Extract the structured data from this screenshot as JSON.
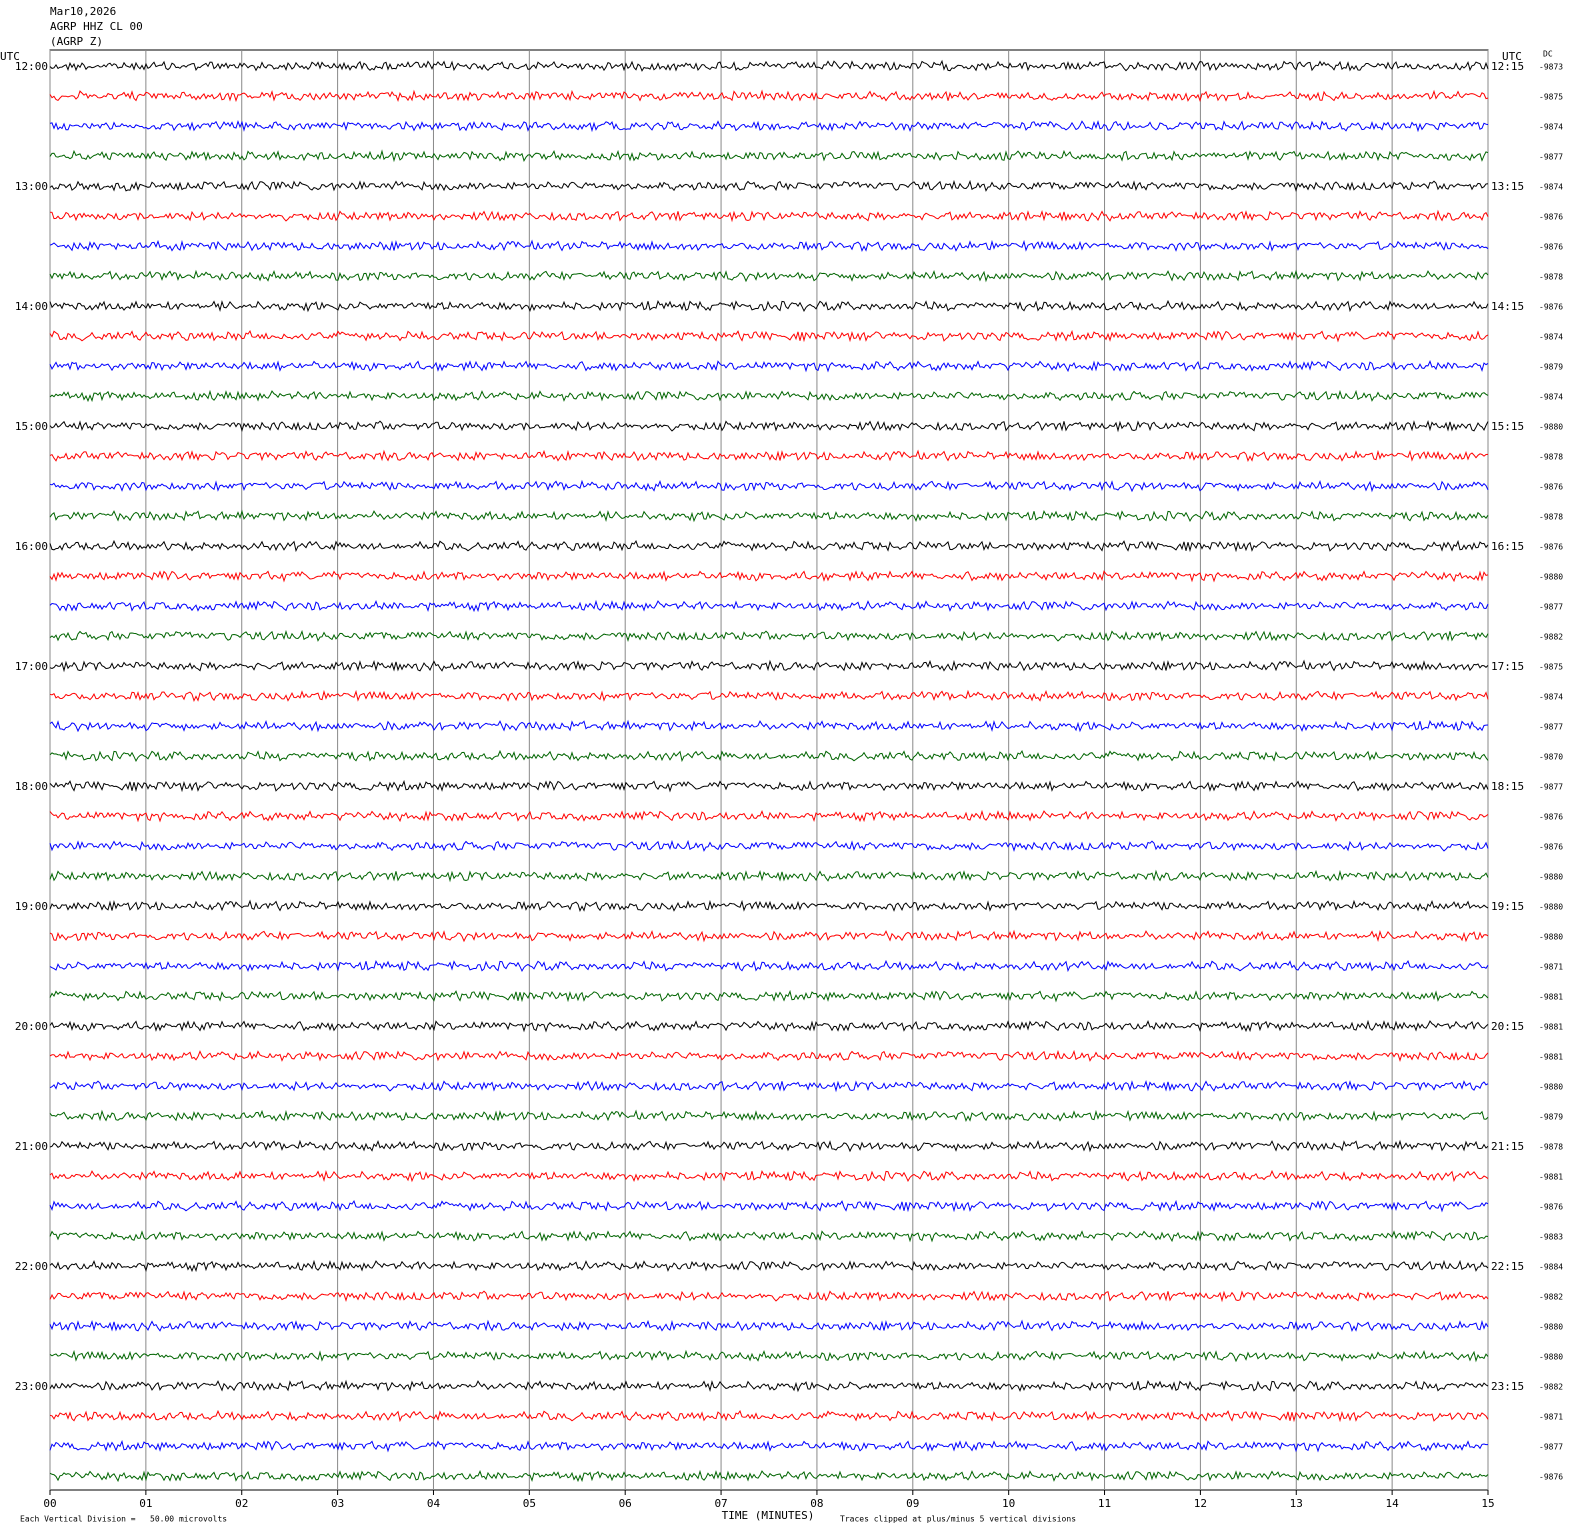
{
  "chart_data": {
    "type": "helicorder",
    "title": "Mar10,2026",
    "subtitle": "AGRP HHZ CL 00",
    "station": "(AGRP Z)",
    "left_axis_title": "UTC",
    "right_axis_title": "UTC",
    "dc_title": "DC",
    "left_labels": [
      "12:00",
      "13:00",
      "14:00",
      "15:00",
      "16:00",
      "17:00",
      "18:00",
      "19:00",
      "20:00",
      "21:00",
      "22:00",
      "23:00"
    ],
    "right_labels": [
      "12:15",
      "13:15",
      "14:15",
      "15:15",
      "16:15",
      "17:15",
      "18:15",
      "19:15",
      "20:15",
      "21:15",
      "22:15",
      "23:15"
    ],
    "trace_colors": [
      "#000000",
      "#ff0000",
      "#0000ff",
      "#006400"
    ],
    "dc_values": [
      -9873,
      -9875,
      -9874,
      -9877,
      -9874,
      -9876,
      -9876,
      -9878,
      -9876,
      -9874,
      -9879,
      -9874,
      -9880,
      -9878,
      -9876,
      -9878,
      -9876,
      -9880,
      -9877,
      -9882,
      -9875,
      -9874,
      -9877,
      -9870,
      -9877,
      -9876,
      -9876,
      -9880,
      -9880,
      -9880,
      -9871,
      -9881,
      -9881,
      -9881,
      -9880,
      -9879,
      -9878,
      -9881,
      -9876,
      -9883,
      -9884,
      -9882,
      -9880,
      -9880,
      -9882,
      -9871,
      -9877,
      -9876
    ],
    "xlim": [
      0,
      15
    ],
    "xticks": [
      {
        "value": 0,
        "label": "00"
      },
      {
        "value": 1,
        "label": "01"
      },
      {
        "value": 2,
        "label": "02"
      },
      {
        "value": 3,
        "label": "03"
      },
      {
        "value": 4,
        "label": "04"
      },
      {
        "value": 5,
        "label": "05"
      },
      {
        "value": 6,
        "label": "06"
      },
      {
        "value": 7,
        "label": "07"
      },
      {
        "value": 8,
        "label": "08"
      },
      {
        "value": 9,
        "label": "09"
      },
      10,
      11,
      12,
      13,
      14,
      15
    ],
    "xlabel": "TIME (MINUTES)",
    "scale_note": "Each Vertical Division =   50.00 microvolts",
    "clip_note": "Traces clipped at plus/minus 5 vertical divisions",
    "grid": true
  }
}
